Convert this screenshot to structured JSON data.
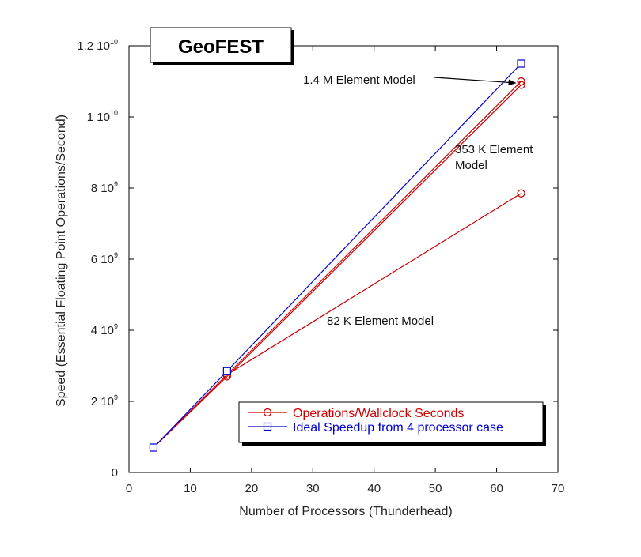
{
  "chart_data": {
    "type": "line",
    "title": "GeoFEST",
    "xlabel": "Number of Processors (Thunderhead)",
    "ylabel": "Speed (Essential Floating Point Operations/Second)",
    "xlim": [
      0,
      70
    ],
    "ylim": [
      0,
      12000000000
    ],
    "x_ticks": [
      0,
      10,
      20,
      30,
      40,
      50,
      60,
      70
    ],
    "y_ticks": [
      {
        "value": 0,
        "mantissa": "0",
        "exp": ""
      },
      {
        "value": 2000000000,
        "mantissa": "2 10",
        "exp": "9"
      },
      {
        "value": 4000000000,
        "mantissa": "4 10",
        "exp": "9"
      },
      {
        "value": 6000000000,
        "mantissa": "6 10",
        "exp": "9"
      },
      {
        "value": 8000000000,
        "mantissa": "8 10",
        "exp": "9"
      },
      {
        "value": 10000000000,
        "mantissa": "1 10",
        "exp": "10"
      },
      {
        "value": 12000000000,
        "mantissa": "1.2 10",
        "exp": "10"
      }
    ],
    "grid": false,
    "legend_position": "bottom-right",
    "legend": [
      {
        "label": "Operations/Wallclock Seconds",
        "color": "#cc0000",
        "marker": "circle"
      },
      {
        "label": "Ideal Speedup from 4 processor case",
        "color": "#0000cc",
        "marker": "square"
      }
    ],
    "series": [
      {
        "group": "Operations/Wallclock Seconds",
        "color": "#cc0000",
        "marker": "circle",
        "x": [
          4,
          16,
          64
        ],
        "y": [
          700000000,
          2700000000,
          10900000000
        ]
      },
      {
        "group": "Operations/Wallclock Seconds",
        "color": "#cc0000",
        "marker": "circle",
        "x": [
          4,
          16,
          64
        ],
        "y": [
          700000000,
          2750000000,
          11000000000
        ]
      },
      {
        "group": "Operations/Wallclock Seconds",
        "color": "#cc0000",
        "marker": "circle",
        "x": [
          4,
          16,
          64
        ],
        "y": [
          700000000,
          2750000000,
          7850000000
        ]
      },
      {
        "group": "Ideal Speedup from 4 processor case",
        "color": "#0000cc",
        "marker": "square",
        "x": [
          4,
          16,
          64
        ],
        "y": [
          700000000,
          2850000000,
          11500000000
        ]
      }
    ],
    "annotations": [
      {
        "lines": [
          "1.4 M Element Model"
        ],
        "arrow_to": {
          "x": 64,
          "y": 11000000000
        }
      },
      {
        "lines": [
          "353 K Element",
          "Model"
        ]
      },
      {
        "lines": [
          "82 K Element Model"
        ]
      }
    ]
  }
}
